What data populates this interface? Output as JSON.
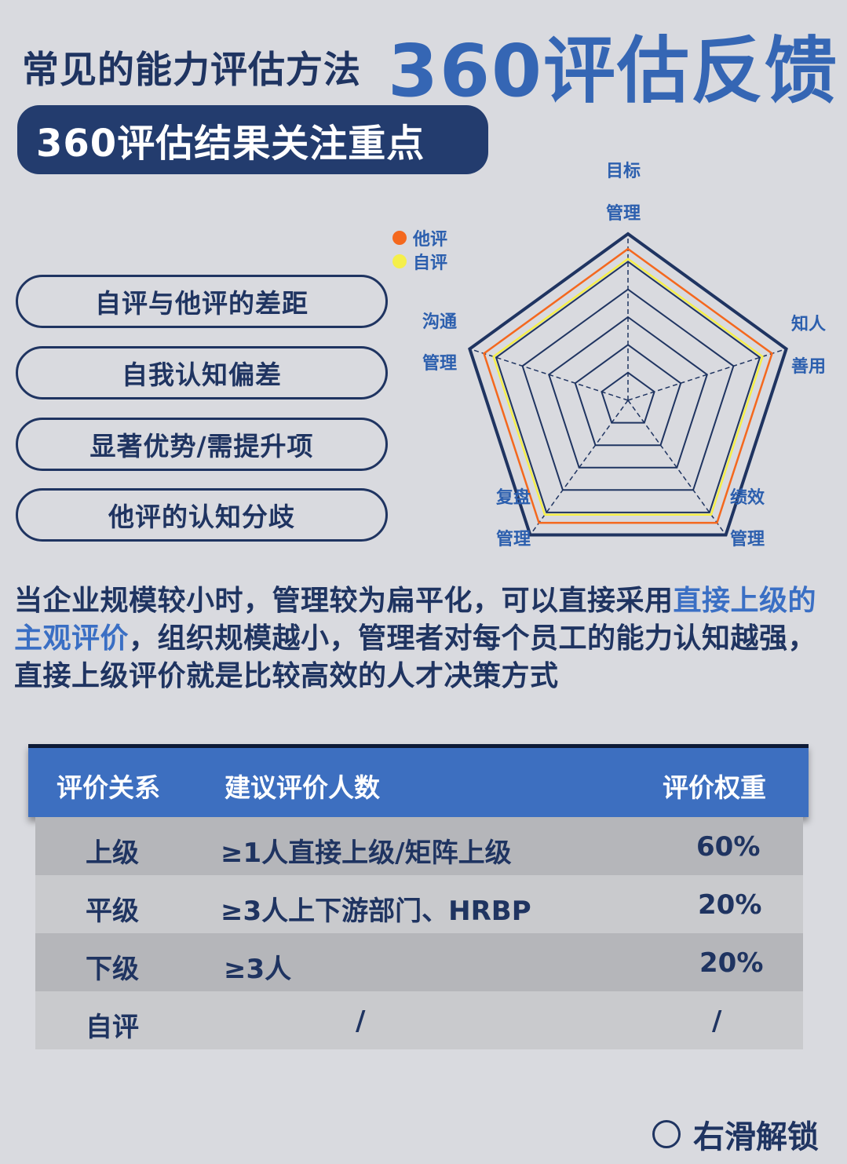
{
  "header": {
    "title_small": "常见的能力评估方法",
    "title_big": "360评估反馈"
  },
  "section_title": "360评估结果关注重点",
  "focus_items": [
    "自评与他评的差距",
    "自我认知偏差",
    "显著优势/需提升项",
    "他评的认知分歧"
  ],
  "radar": {
    "legend": [
      {
        "label": "他评",
        "color": "#f4681e"
      },
      {
        "label": "自评",
        "color": "#f5ef4a"
      }
    ],
    "axes": [
      {
        "line1": "目标",
        "line2": "管理"
      },
      {
        "line1": "知人",
        "line2": "善用"
      },
      {
        "line1": "绩效",
        "line2": "管理"
      },
      {
        "line1": "复盘",
        "line2": "管理"
      },
      {
        "line1": "沟通",
        "line2": "管理"
      }
    ],
    "outline_color": "#1f3461"
  },
  "paragraph": {
    "part1": "当企业规模较小时，管理较为扁平化，可以直接采用",
    "highlight": "直接上级的主观评价",
    "part2": "，组织规模越小，管理者对每个员工的能力认知越强，直接上级评价就是比较高效的人才决策方式"
  },
  "table": {
    "headers": [
      "评价关系",
      "建议评价人数",
      "评价权重"
    ],
    "rows": [
      [
        "上级",
        "≥1人直接上级/矩阵上级",
        "60%"
      ],
      [
        "平级",
        "≥3人上下游部门、HRBP",
        "20%"
      ],
      [
        "下级",
        "≥3人",
        "20%"
      ],
      [
        "自评",
        "/",
        "/"
      ]
    ]
  },
  "footer": {
    "label": "右滑解锁"
  }
}
